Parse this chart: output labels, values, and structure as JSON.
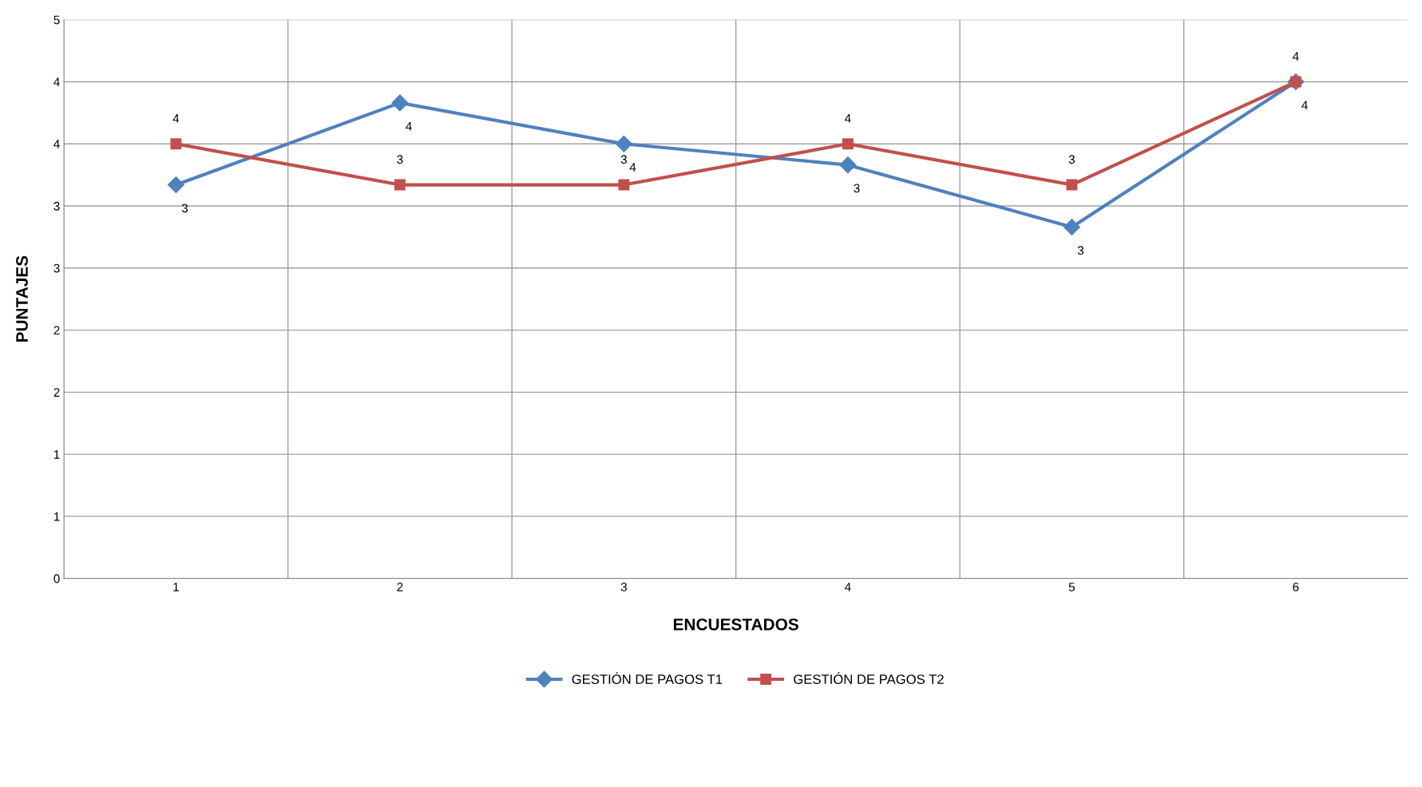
{
  "chart_data": {
    "type": "line",
    "xlabel": "ENCUESTADOS",
    "ylabel": "PUNTAJES",
    "categories": [
      "1",
      "2",
      "3",
      "4",
      "5",
      "6"
    ],
    "ylim": [
      0,
      4.5
    ],
    "yticks": [
      0,
      {
        "value": 0.5,
        "label": "1"
      },
      1,
      {
        "value": 1.5,
        "label": "2"
      },
      2,
      {
        "value": 2.5,
        "label": "3"
      },
      3,
      {
        "value": 3.5,
        "label": "4"
      },
      4,
      {
        "value": 4.5,
        "label": "5"
      }
    ],
    "grid": true,
    "legend": "bottom",
    "series": [
      {
        "name": "GESTIÓN DE PAGOS T1",
        "color": "#4f81bd",
        "marker": "diamond",
        "values": [
          3.17,
          3.83,
          3.5,
          3.33,
          2.83,
          4.0
        ],
        "value_labels": [
          "3",
          "4",
          "4",
          "3",
          "3",
          "4"
        ]
      },
      {
        "name": "GESTIÓN DE PAGOS T2",
        "color": "#c0504d",
        "marker": "square",
        "values": [
          3.5,
          3.17,
          3.17,
          3.5,
          3.17,
          4.0
        ],
        "value_labels": [
          "4",
          "3",
          "3",
          "4",
          "3",
          "4"
        ]
      }
    ]
  }
}
